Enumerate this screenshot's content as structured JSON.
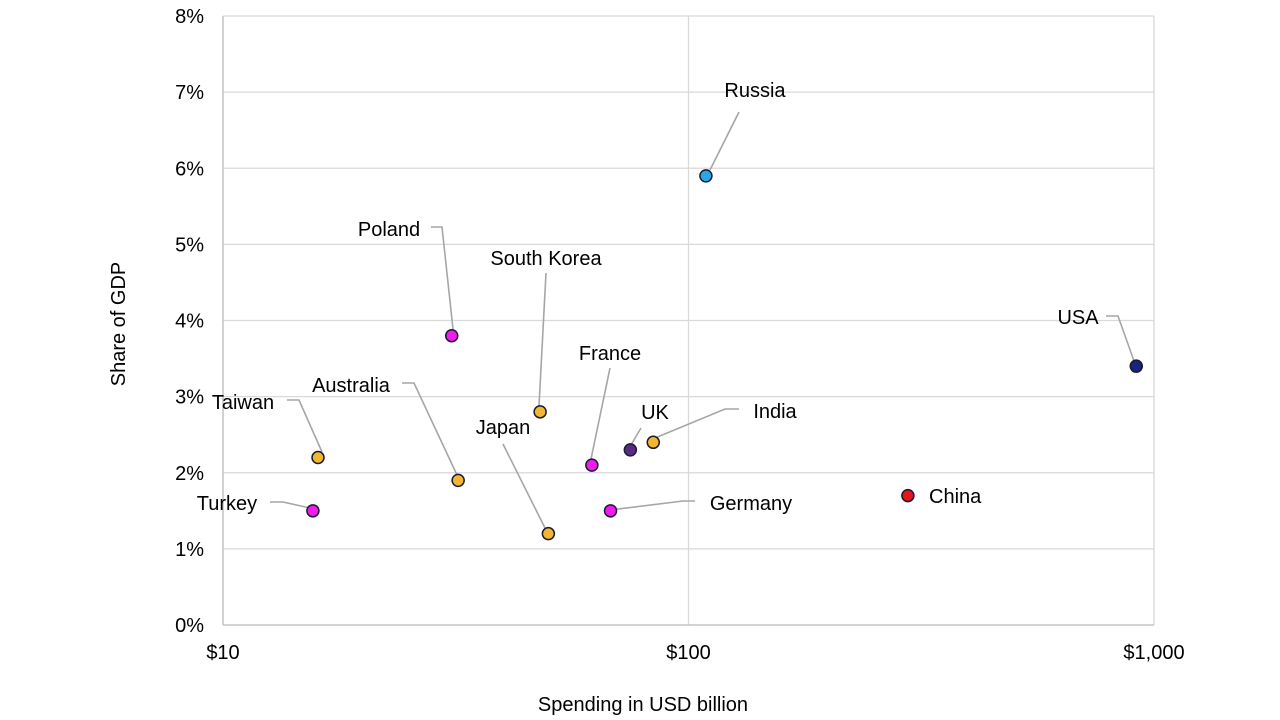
{
  "chart_data": {
    "type": "scatter",
    "title": "",
    "xlabel": "Spending in USD billion",
    "ylabel": "Share of GDP",
    "xscale": "log",
    "xlim": [
      10,
      1000
    ],
    "ylim": [
      0,
      8
    ],
    "x_ticks": [
      {
        "value": 10,
        "label": "$10"
      },
      {
        "value": 100,
        "label": "$100"
      },
      {
        "value": 1000,
        "label": "$1,000"
      }
    ],
    "y_ticks": [
      {
        "value": 0,
        "label": "0%"
      },
      {
        "value": 1,
        "label": "1%"
      },
      {
        "value": 2,
        "label": "2%"
      },
      {
        "value": 3,
        "label": "3%"
      },
      {
        "value": 4,
        "label": "4%"
      },
      {
        "value": 5,
        "label": "5%"
      },
      {
        "value": 6,
        "label": "6%"
      },
      {
        "value": 7,
        "label": "7%"
      },
      {
        "value": 8,
        "label": "8%"
      }
    ],
    "grid": true,
    "points": [
      {
        "name": "Russia",
        "x": 109,
        "y": 5.9,
        "color": "#29a8e8"
      },
      {
        "name": "Poland",
        "x": 31,
        "y": 3.8,
        "color": "#ee1cee"
      },
      {
        "name": "South Korea",
        "x": 48,
        "y": 2.8,
        "color": "#f2b632"
      },
      {
        "name": "USA",
        "x": 916,
        "y": 3.4,
        "color": "#1a237e"
      },
      {
        "name": "France",
        "x": 62,
        "y": 2.1,
        "color": "#ee1cee"
      },
      {
        "name": "Australia",
        "x": 32,
        "y": 1.9,
        "color": "#f2b632"
      },
      {
        "name": "Taiwan",
        "x": 16,
        "y": 2.2,
        "color": "#f2b632"
      },
      {
        "name": "UK",
        "x": 75,
        "y": 2.3,
        "color": "#5b2a86"
      },
      {
        "name": "India",
        "x": 84,
        "y": 2.4,
        "color": "#f2b632"
      },
      {
        "name": "Japan",
        "x": 50,
        "y": 1.2,
        "color": "#f2b632"
      },
      {
        "name": "Turkey",
        "x": 15.6,
        "y": 1.5,
        "color": "#ee1cee"
      },
      {
        "name": "Germany",
        "x": 68,
        "y": 1.5,
        "color": "#ee1cee"
      },
      {
        "name": "China",
        "x": 296,
        "y": 1.7,
        "color": "#e8141c"
      }
    ]
  }
}
